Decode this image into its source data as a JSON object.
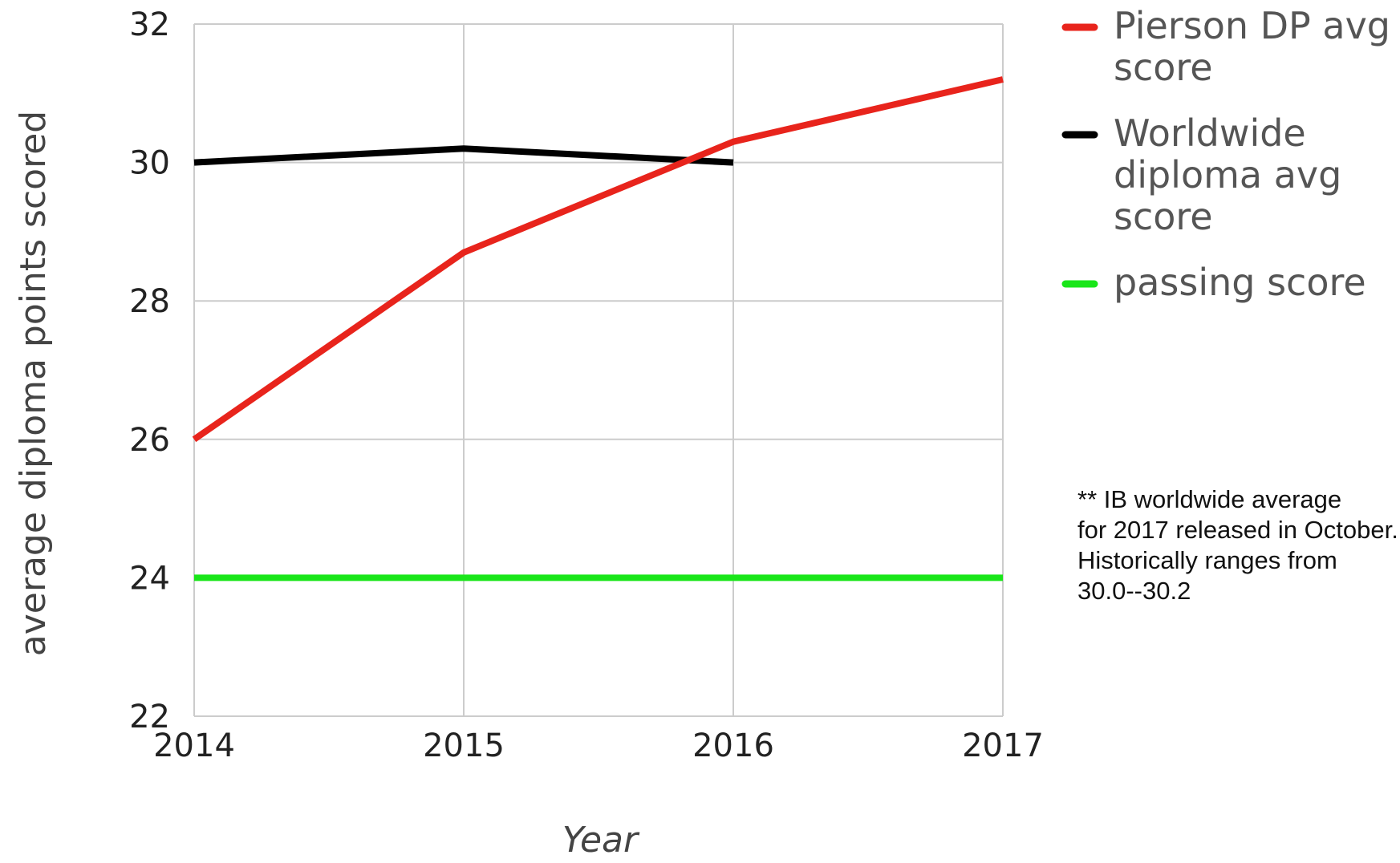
{
  "chart_data": {
    "type": "line",
    "title": "",
    "xlabel": "Year",
    "ylabel": "average diploma points scored",
    "x": [
      2014,
      2015,
      2016,
      2017
    ],
    "x_tick_labels": [
      "2014",
      "2015",
      "2016",
      "2017"
    ],
    "y_tick_labels": [
      "32",
      "30",
      "28",
      "26",
      "24",
      "22"
    ],
    "ylim": [
      22,
      32
    ],
    "xlim": [
      2014,
      2017
    ],
    "grid": true,
    "legend_position": "right",
    "series": [
      {
        "name": "Pierson DP avg score",
        "color": "#e8241c",
        "values": [
          26.0,
          28.7,
          30.3,
          31.2
        ]
      },
      {
        "name": "Worldwide diploma avg score",
        "color": "#000000",
        "values": [
          30.0,
          30.2,
          30.0,
          null
        ]
      },
      {
        "name": "passing score",
        "color": "#19e619",
        "values": [
          24,
          24,
          24,
          24
        ]
      }
    ],
    "annotation": {
      "lines": [
        "** IB worldwide average",
        "for 2017 released in October.",
        "Historically ranges from",
        "30.0--30.2"
      ]
    }
  }
}
